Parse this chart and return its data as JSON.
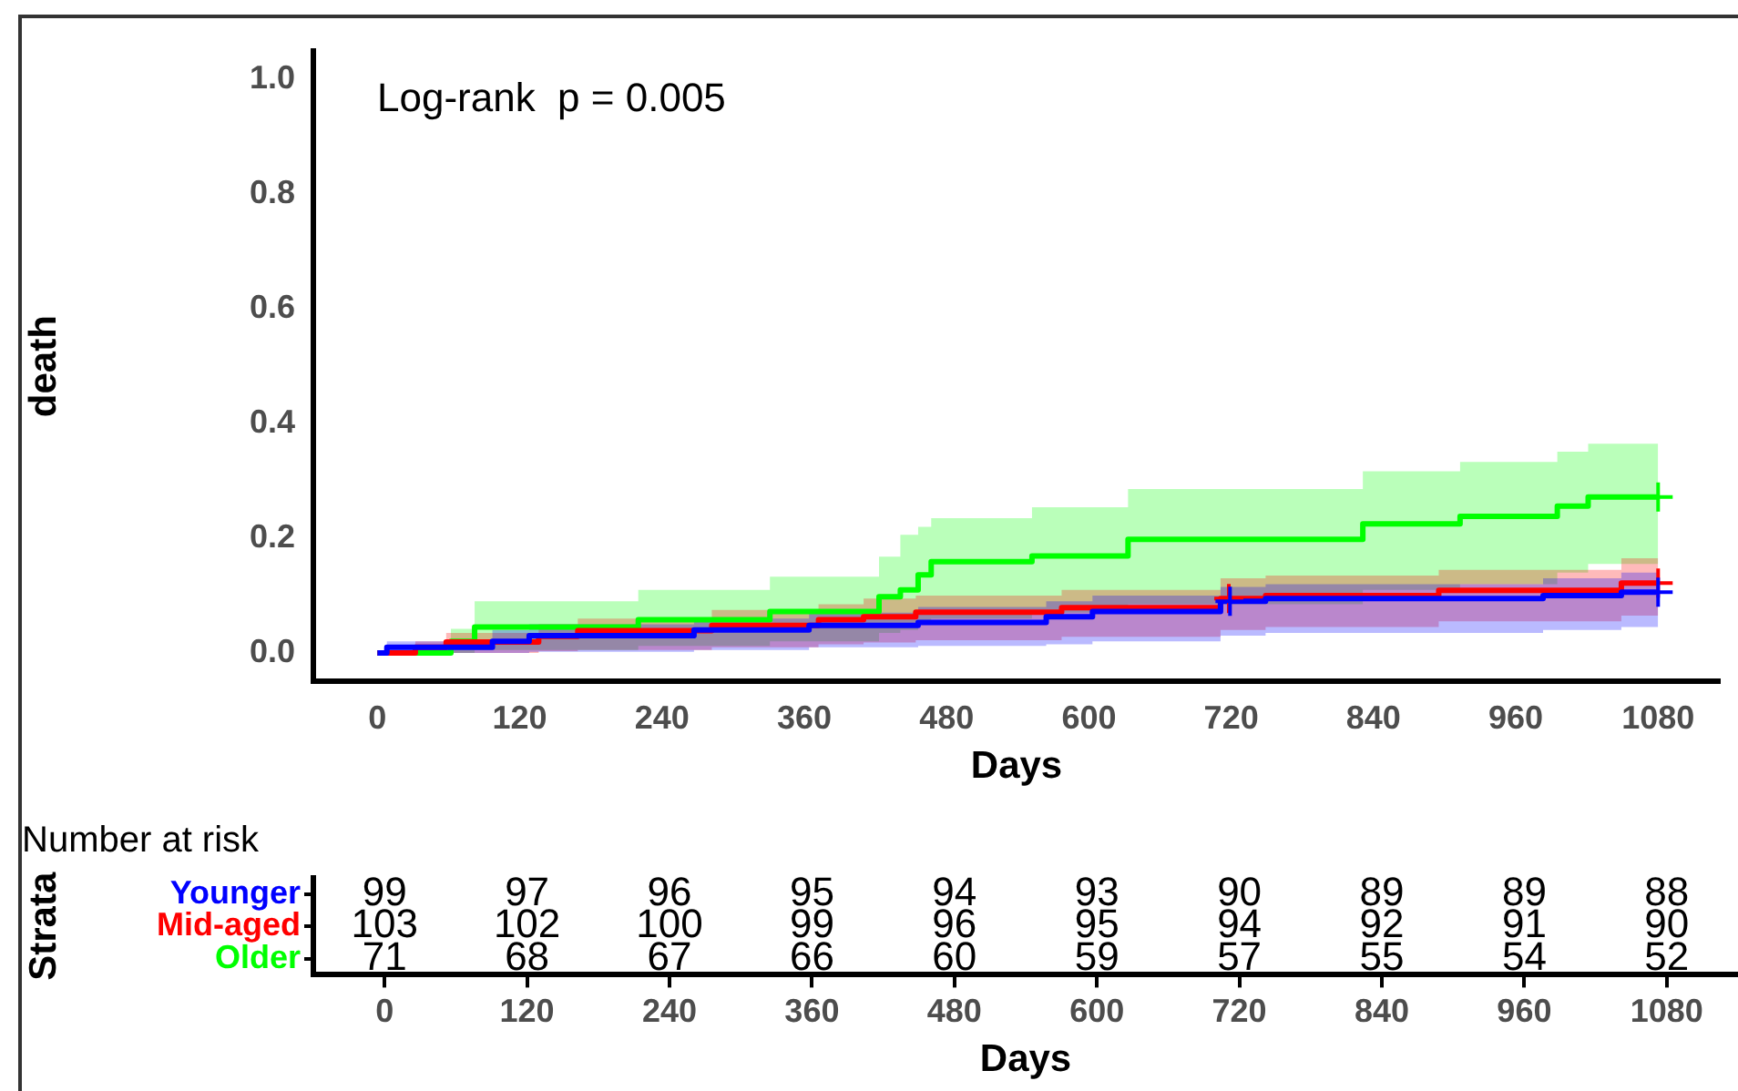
{
  "chart_data": [
    {
      "type": "step",
      "xlabel": "Days",
      "ylabel": "death",
      "xlim": [
        -54,
        1132
      ],
      "xticks": [
        0,
        120,
        240,
        360,
        480,
        600,
        720,
        840,
        960,
        1080
      ],
      "ylim": [
        -0.05,
        1.05
      ],
      "yticks": [
        {
          "value": 0,
          "label": "0.0"
        },
        {
          "value": 0.2,
          "label": "0.2"
        },
        {
          "value": 0.4,
          "label": "0.4"
        },
        {
          "value": 0.6,
          "label": "0.6"
        },
        {
          "value": 0.8,
          "label": "0.8"
        },
        {
          "value": 1,
          "label": "1.0"
        }
      ],
      "grid": false,
      "legend": false,
      "annotations": [
        "Log-rank  p = 0.005"
      ],
      "series": [
        {
          "type": "step",
          "color": "#0000ff",
          "x": [
            0,
            8,
            97,
            128,
            267,
            364,
            456,
            564,
            603,
            711,
            749,
            983,
            1049,
            1080
          ],
          "values": [
            0,
            0.01,
            0.02,
            0.03,
            0.04,
            0.048,
            0.053,
            0.063,
            0.072,
            0.09,
            0.095,
            0.1,
            0.106,
            0.106
          ],
          "lower": [
            0,
            0,
            0,
            0.002,
            0.005,
            0.01,
            0.012,
            0.015,
            0.02,
            0.03,
            0.035,
            0.04,
            0.045,
            0.045
          ],
          "upper": [
            0,
            0.02,
            0.04,
            0.05,
            0.06,
            0.07,
            0.08,
            0.09,
            0.1,
            0.115,
            0.12,
            0.13,
            0.14,
            0.14
          ]
        },
        {
          "type": "step",
          "color": "#ff0000",
          "x": [
            0,
            32,
            58,
            136,
            169,
            282,
            372,
            410,
            454,
            577,
            711,
            749,
            895,
            1049,
            1080
          ],
          "values": [
            0,
            0.01,
            0.019,
            0.029,
            0.039,
            0.048,
            0.058,
            0.063,
            0.071,
            0.079,
            0.095,
            0.1,
            0.109,
            0.122,
            0.122
          ],
          "lower": [
            0,
            0,
            0,
            0.003,
            0.005,
            0.01,
            0.015,
            0.018,
            0.022,
            0.028,
            0.04,
            0.045,
            0.055,
            0.065,
            0.065
          ],
          "upper": [
            0,
            0.02,
            0.035,
            0.05,
            0.06,
            0.075,
            0.085,
            0.095,
            0.1,
            0.11,
            0.13,
            0.135,
            0.145,
            0.165,
            0.165
          ]
        },
        {
          "type": "step",
          "color": "#00ff00",
          "x": [
            0,
            62,
            82,
            220,
            331,
            423,
            441,
            456,
            467,
            552,
            633,
            831,
            913,
            995,
            1021,
            1080
          ],
          "values": [
            0,
            0.02,
            0.045,
            0.058,
            0.072,
            0.098,
            0.11,
            0.136,
            0.159,
            0.169,
            0.198,
            0.225,
            0.238,
            0.256,
            0.272,
            0.272
          ],
          "lower": [
            0,
            0,
            0.005,
            0.012,
            0.02,
            0.035,
            0.04,
            0.05,
            0.06,
            0.07,
            0.085,
            0.11,
            0.12,
            0.14,
            0.155,
            0.155
          ],
          "upper": [
            0,
            0.042,
            0.09,
            0.11,
            0.133,
            0.168,
            0.206,
            0.22,
            0.235,
            0.254,
            0.286,
            0.317,
            0.333,
            0.351,
            0.365,
            0.365
          ]
        },
        {
          "type": "scatter",
          "marker": "cross",
          "color": "#0000ff",
          "x": [
            719,
            1080
          ],
          "values": [
            0.09,
            0.106
          ]
        },
        {
          "type": "scatter",
          "marker": "cross",
          "color": "#ff0000",
          "x": [
            718,
            1080
          ],
          "values": [
            0.095,
            0.122
          ]
        },
        {
          "type": "scatter",
          "marker": "cross",
          "color": "#00ff00",
          "x": [
            1080
          ],
          "values": [
            0.272
          ]
        }
      ]
    },
    {
      "type": "heatmap",
      "title": "Number at risk",
      "xlabel": "Days",
      "ylabel": "Strata",
      "categories": [
        "0",
        "120",
        "240",
        "360",
        "480",
        "600",
        "720",
        "840",
        "960",
        "1080"
      ],
      "y_categories": [
        "Younger",
        "Mid-aged",
        "Older"
      ],
      "colors": [
        "#0000ff",
        "#ff0000",
        "#00ff00"
      ],
      "cells": [
        [
          99,
          97,
          96,
          95,
          94,
          93,
          90,
          89,
          89,
          88
        ],
        [
          103,
          102,
          100,
          99,
          96,
          95,
          94,
          92,
          91,
          90
        ],
        [
          71,
          68,
          67,
          66,
          60,
          59,
          57,
          55,
          54,
          52
        ]
      ],
      "data_labels": true
    }
  ]
}
